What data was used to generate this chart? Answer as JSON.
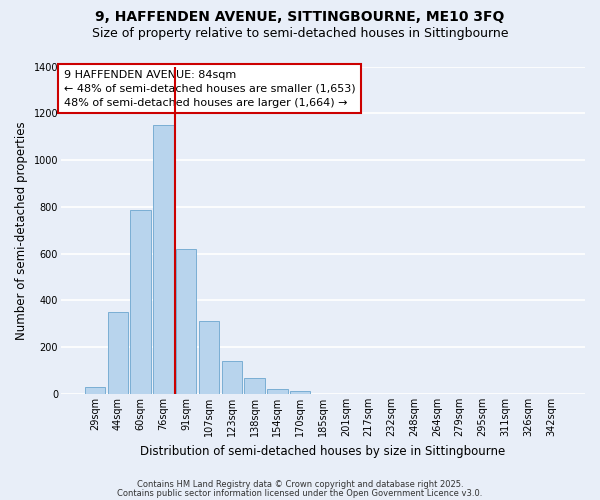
{
  "title": "9, HAFFENDEN AVENUE, SITTINGBOURNE, ME10 3FQ",
  "subtitle": "Size of property relative to semi-detached houses in Sittingbourne",
  "xlabel": "Distribution of semi-detached houses by size in Sittingbourne",
  "ylabel": "Number of semi-detached properties",
  "bin_labels": [
    "29sqm",
    "44sqm",
    "60sqm",
    "76sqm",
    "91sqm",
    "107sqm",
    "123sqm",
    "138sqm",
    "154sqm",
    "170sqm",
    "185sqm",
    "201sqm",
    "217sqm",
    "232sqm",
    "248sqm",
    "264sqm",
    "279sqm",
    "295sqm",
    "311sqm",
    "326sqm",
    "342sqm"
  ],
  "bar_values": [
    30,
    350,
    785,
    1150,
    620,
    310,
    140,
    70,
    20,
    15,
    0,
    0,
    0,
    0,
    0,
    0,
    0,
    0,
    0,
    0,
    0
  ],
  "bar_color": "#b8d4ed",
  "bar_edge_color": "#7aaed4",
  "vline_color": "#cc0000",
  "annotation_title": "9 HAFFENDEN AVENUE: 84sqm",
  "annotation_line1": "← 48% of semi-detached houses are smaller (1,653)",
  "annotation_line2": "48% of semi-detached houses are larger (1,664) →",
  "annotation_box_facecolor": "#ffffff",
  "annotation_border_color": "#cc0000",
  "ylim": [
    0,
    1400
  ],
  "yticks": [
    0,
    200,
    400,
    600,
    800,
    1000,
    1200,
    1400
  ],
  "footnote1": "Contains HM Land Registry data © Crown copyright and database right 2025.",
  "footnote2": "Contains public sector information licensed under the Open Government Licence v3.0.",
  "background_color": "#e8eef8",
  "grid_color": "#ffffff",
  "title_fontsize": 10,
  "subtitle_fontsize": 9,
  "axis_label_fontsize": 8.5,
  "tick_fontsize": 7,
  "annotation_fontsize": 8,
  "footnote_fontsize": 6
}
